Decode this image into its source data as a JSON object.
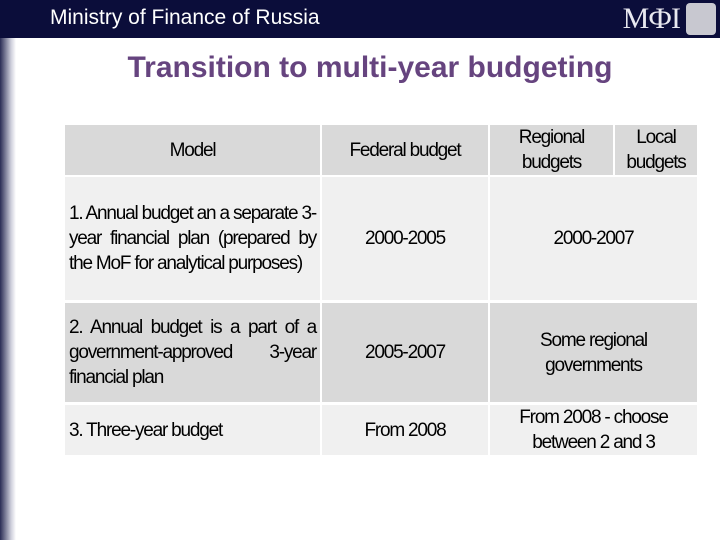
{
  "header": {
    "organization": "Ministry of Finance of Russia",
    "logo": "MФI"
  },
  "title": "Transition to multi-year budgeting",
  "table": {
    "columns": [
      "Model",
      "Federal budget",
      "Regional budgets",
      "Local budgets"
    ],
    "rows": [
      [
        "1. Annual budget an a separate 3-year financial plan (prepared by the MoF for analytical purposes)",
        "2000-2005",
        "2000-2007"
      ],
      [
        "2. Annual budget is a part of a government-approved 3-year financial plan",
        "2005-2007",
        "Some regional governments"
      ],
      [
        "3. Three-year budget",
        "From 2008",
        "From 2008 - choose between 2 and 3"
      ]
    ]
  }
}
